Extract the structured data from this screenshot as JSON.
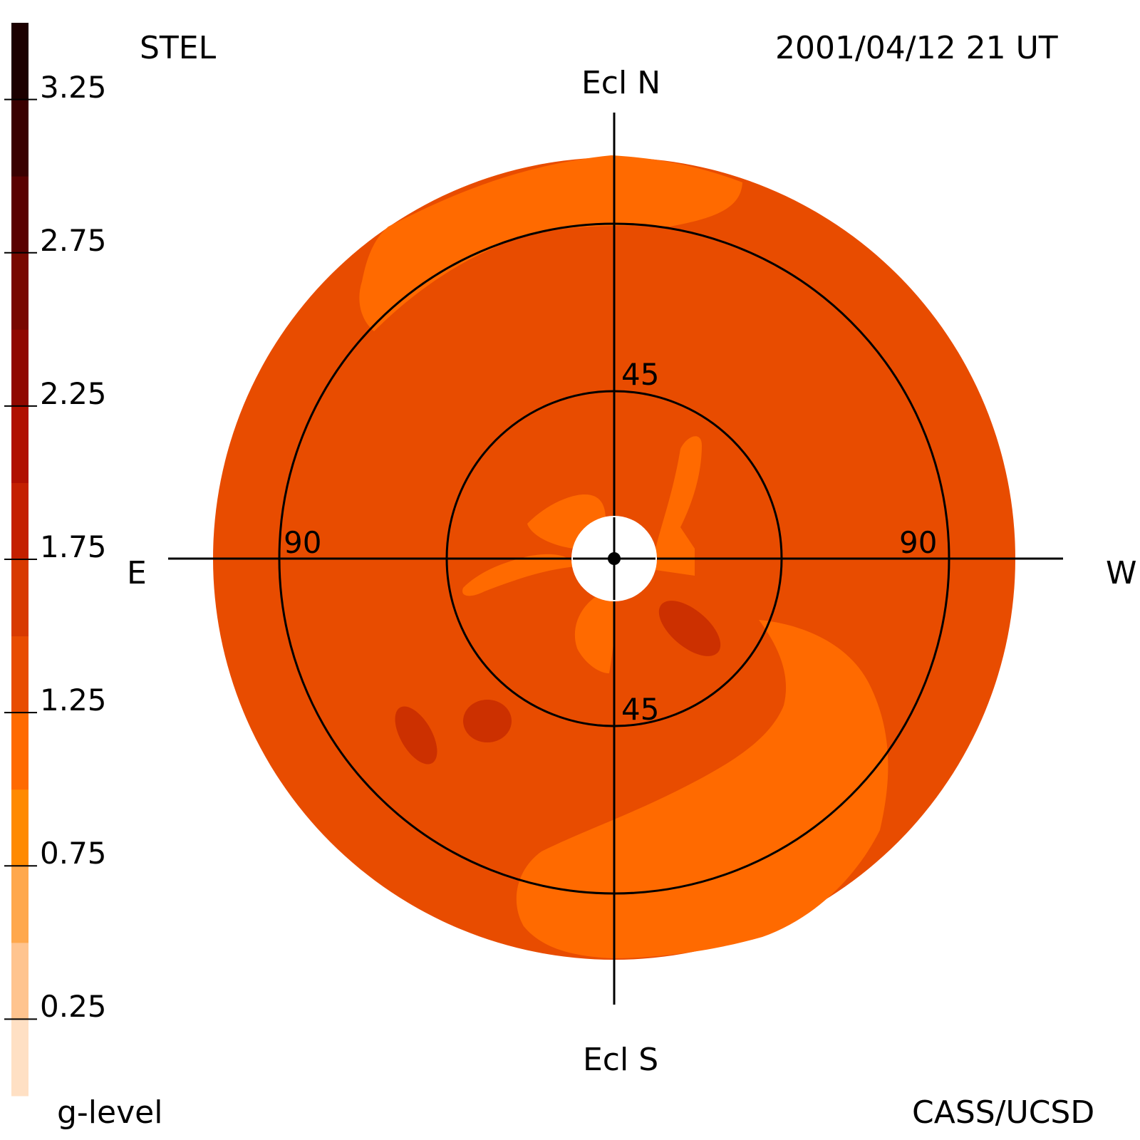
{
  "header": {
    "instrument": "STEL",
    "datetime": "2001/04/12 21 UT",
    "credit": "CASS/UCSD"
  },
  "directions": {
    "north": "Ecl N",
    "south": "Ecl S",
    "east": "E",
    "west": "W"
  },
  "rings": [
    {
      "elongation": 45,
      "label_top": "45",
      "label_bottom": "45"
    },
    {
      "elongation": 90,
      "label_left": "90",
      "label_right": "90"
    }
  ],
  "colorbar": {
    "label": "g-level",
    "min": 0.0,
    "max": 3.5,
    "step": 0.25,
    "tick_values": [
      "3.25",
      "2.75",
      "2.25",
      "1.75",
      "1.25",
      "0.75",
      "0.25"
    ],
    "colors": [
      "#ffe0c4",
      "#ffc48f",
      "#ffa84c",
      "#ff8a00",
      "#ff6a00",
      "#e84c00",
      "#d83a00",
      "#c42000",
      "#b01000",
      "#900800",
      "#780800",
      "#5a0000",
      "#3a0000",
      "#1c0000"
    ]
  },
  "map_colors": {
    "background_level": "#e84c00",
    "low_level": "#ff6a00",
    "high_level": "#cc3000",
    "occulter": "#ffffff"
  }
}
